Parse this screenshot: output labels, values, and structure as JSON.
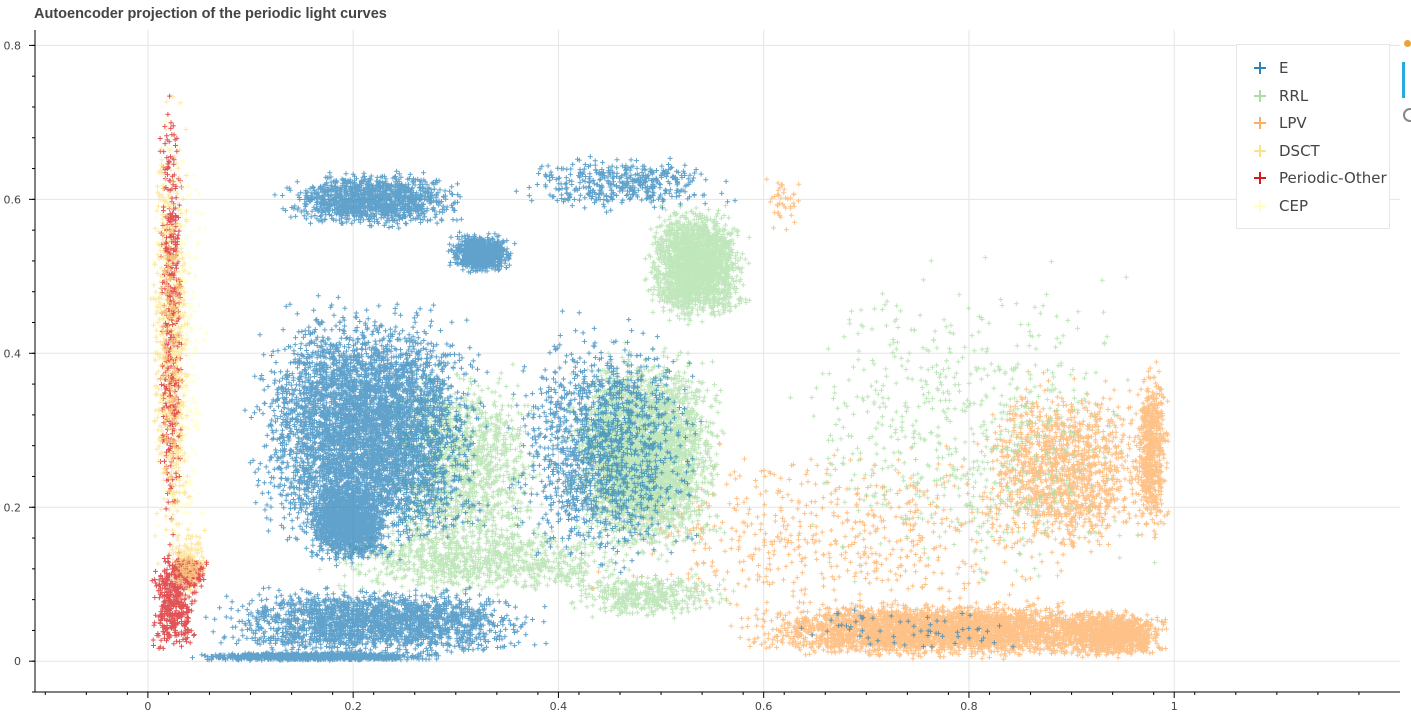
{
  "chart_data": {
    "type": "scatter",
    "title": "Autoencoder projection of the periodic light curves",
    "xlim": [
      -0.11,
      1.22
    ],
    "ylim": [
      -0.04,
      0.82
    ],
    "x_ticks": [
      "0",
      "0.2",
      "0.4",
      "0.6",
      "0.8",
      "1"
    ],
    "y_ticks": [
      "0",
      "0.2",
      "0.4",
      "0.6",
      "0.8"
    ],
    "grid": true,
    "legend_position": "top-right",
    "marker": "cross",
    "series": [
      {
        "name": "E",
        "color": "#2b83ba",
        "clusters": [
          {
            "x": [
              0.12,
              0.32
            ],
            "y": [
              0.56,
              0.64
            ],
            "n": 1300
          },
          {
            "x": [
              0.29,
              0.36
            ],
            "y": [
              0.5,
              0.56
            ],
            "n": 800
          },
          {
            "x": [
              0.35,
              0.58
            ],
            "y": [
              0.58,
              0.66
            ],
            "n": 450
          },
          {
            "x": [
              0.09,
              0.34
            ],
            "y": [
              0.12,
              0.48
            ],
            "n": 6000
          },
          {
            "x": [
              0.15,
              0.24
            ],
            "y": [
              0.12,
              0.24
            ],
            "n": 1500
          },
          {
            "x": [
              0.34,
              0.55
            ],
            "y": [
              0.1,
              0.46
            ],
            "n": 1400
          },
          {
            "x": [
              0.05,
              0.4
            ],
            "y": [
              0.0,
              0.1
            ],
            "n": 2200
          },
          {
            "x": [
              0.03,
              0.3
            ],
            "y": [
              0.0,
              0.012
            ],
            "n": 1000
          },
          {
            "x": [
              0.6,
              0.9
            ],
            "y": [
              0.0,
              0.08
            ],
            "n": 60
          }
        ]
      },
      {
        "name": "RRL",
        "color": "#abdda4",
        "clusters": [
          {
            "x": [
              0.48,
              0.59
            ],
            "y": [
              0.43,
              0.6
            ],
            "n": 2200
          },
          {
            "x": [
              0.4,
              0.57
            ],
            "y": [
              0.12,
              0.42
            ],
            "n": 3500
          },
          {
            "x": [
              0.22,
              0.4
            ],
            "y": [
              0.1,
              0.4
            ],
            "n": 1300
          },
          {
            "x": [
              0.15,
              0.5
            ],
            "y": [
              0.08,
              0.18
            ],
            "n": 900
          },
          {
            "x": [
              0.6,
              1.0
            ],
            "y": [
              0.05,
              0.55
            ],
            "n": 700
          },
          {
            "x": [
              0.4,
              0.58
            ],
            "y": [
              0.05,
              0.12
            ],
            "n": 400
          }
        ]
      },
      {
        "name": "LPV",
        "color": "#fdae61",
        "clusters": [
          {
            "x": [
              0.56,
              1.0
            ],
            "y": [
              0.0,
              0.08
            ],
            "n": 3500
          },
          {
            "x": [
              0.88,
              1.0
            ],
            "y": [
              0.0,
              0.07
            ],
            "n": 1000
          },
          {
            "x": [
              0.8,
              0.99
            ],
            "y": [
              0.12,
              0.38
            ],
            "n": 1300
          },
          {
            "x": [
              0.96,
              0.997
            ],
            "y": [
              0.15,
              0.4
            ],
            "n": 600
          },
          {
            "x": [
              0.4,
              0.95
            ],
            "y": [
              0.03,
              0.3
            ],
            "n": 600
          },
          {
            "x": [
              0.6,
              0.64
            ],
            "y": [
              0.55,
              0.64
            ],
            "n": 40
          }
        ]
      },
      {
        "name": "DSCT",
        "color": "#fee08b",
        "clusters": [
          {
            "x": [
              0.0,
              0.045
            ],
            "y": [
              0.05,
              0.77
            ],
            "n": 600
          },
          {
            "x": [
              0.02,
              0.06
            ],
            "y": [
              0.08,
              0.18
            ],
            "n": 150
          }
        ]
      },
      {
        "name": "Periodic-Other",
        "color": "#d7191c",
        "clusters": [
          {
            "x": [
              0.01,
              0.035
            ],
            "y": [
              0.1,
              0.78
            ],
            "n": 500
          },
          {
            "x": [
              0.0,
              0.05
            ],
            "y": [
              0.0,
              0.15
            ],
            "n": 400
          },
          {
            "x": [
              0.02,
              0.06
            ],
            "y": [
              0.09,
              0.14
            ],
            "n": 250
          }
        ]
      },
      {
        "name": "CEP",
        "color": "#ffffbf",
        "clusters": [
          {
            "x": [
              0.0,
              0.06
            ],
            "y": [
              0.05,
              0.75
            ],
            "n": 400
          }
        ]
      }
    ]
  }
}
